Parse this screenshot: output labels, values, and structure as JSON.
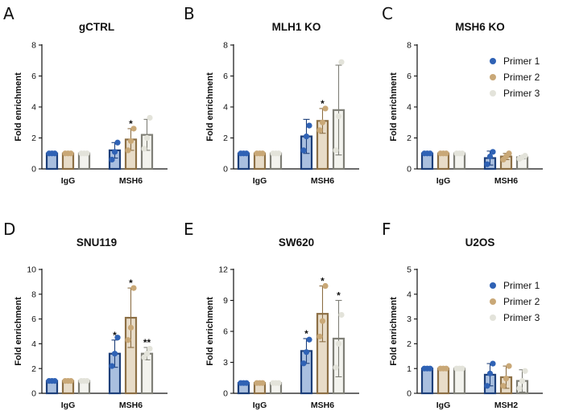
{
  "colors": {
    "primer1_edge": "#1d3f7a",
    "primer1_fill": "#a9bfdf",
    "primer1_dot": "#2f62b5",
    "primer2_edge": "#8c6f45",
    "primer2_fill": "#e8dcc8",
    "primer2_dot": "#c9a877",
    "primer3_edge": "#7f7f77",
    "primer3_fill": "#f3f3ee",
    "primer3_dot": "#e3e3da"
  },
  "chart_data": [
    {
      "type": "bar",
      "panel": "A",
      "title": "gCTRL",
      "ylabel": "Fold enrichment",
      "ylim": [
        0,
        8
      ],
      "yticks": [
        0,
        2,
        4,
        6,
        8
      ],
      "categories": [
        "IgG",
        "MSH6"
      ],
      "series": [
        {
          "name": "Primer 1",
          "values": [
            1.0,
            1.2
          ],
          "errors": [
            0.0,
            0.5
          ],
          "points": [
            [
              1,
              1,
              1
            ],
            [
              0.6,
              1.1,
              1.7
            ]
          ],
          "sig": [
            "",
            ""
          ]
        },
        {
          "name": "Primer 2",
          "values": [
            1.0,
            1.9
          ],
          "errors": [
            0.0,
            0.7
          ],
          "points": [
            [
              1,
              1,
              1
            ],
            [
              1.2,
              1.8,
              2.6
            ]
          ],
          "sig": [
            "",
            "*"
          ]
        },
        {
          "name": "Primer 3",
          "values": [
            1.0,
            2.2
          ],
          "errors": [
            0.0,
            1.0
          ],
          "points": [
            [
              1,
              1,
              1
            ],
            [
              1.3,
              2.0,
              3.3
            ]
          ],
          "sig": [
            "",
            ""
          ]
        }
      ]
    },
    {
      "type": "bar",
      "panel": "B",
      "title": "MLH1 KO",
      "ylabel": "Fold enrichment",
      "ylim": [
        0,
        8
      ],
      "yticks": [
        0,
        2,
        4,
        6,
        8
      ],
      "categories": [
        "IgG",
        "MSH6"
      ],
      "series": [
        {
          "name": "Primer 1",
          "values": [
            1.0,
            2.1
          ],
          "errors": [
            0.0,
            1.1
          ],
          "points": [
            [
              1,
              1,
              1
            ],
            [
              1.2,
              2.1,
              2.8
            ]
          ],
          "sig": [
            "",
            ""
          ]
        },
        {
          "name": "Primer 2",
          "values": [
            1.0,
            3.1
          ],
          "errors": [
            0.0,
            0.8
          ],
          "points": [
            [
              1,
              1,
              1
            ],
            [
              2.5,
              3.0,
              3.9
            ]
          ],
          "sig": [
            "",
            "*"
          ]
        },
        {
          "name": "Primer 3",
          "values": [
            1.0,
            3.8
          ],
          "errors": [
            0.0,
            2.9
          ],
          "points": [
            [
              1,
              1,
              1
            ],
            [
              1.2,
              3.4,
              6.9
            ]
          ],
          "sig": [
            "",
            ""
          ]
        }
      ]
    },
    {
      "type": "bar",
      "panel": "C",
      "title": "MSH6 KO",
      "ylabel": "Fold enrichment",
      "ylim": [
        0,
        8
      ],
      "yticks": [
        0,
        2,
        4,
        6,
        8
      ],
      "categories": [
        "IgG",
        "MSH6"
      ],
      "series": [
        {
          "name": "Primer 1",
          "values": [
            1.0,
            0.7
          ],
          "errors": [
            0.0,
            0.45
          ],
          "points": [
            [
              1,
              1,
              1
            ],
            [
              0.3,
              0.8,
              1.1
            ]
          ],
          "sig": [
            "",
            ""
          ]
        },
        {
          "name": "Primer 2",
          "values": [
            1.0,
            0.8
          ],
          "errors": [
            0.0,
            0.2
          ],
          "points": [
            [
              1,
              1,
              1
            ],
            [
              0.6,
              0.8,
              1.0
            ]
          ],
          "sig": [
            "",
            ""
          ]
        },
        {
          "name": "Primer 3",
          "values": [
            1.0,
            0.75
          ],
          "errors": [
            0.0,
            0.1
          ],
          "points": [
            [
              1,
              1,
              1
            ],
            [
              0.65,
              0.75,
              0.85
            ]
          ],
          "sig": [
            "",
            ""
          ]
        }
      ],
      "legend": [
        "Primer 1",
        "Primer 2",
        "Primer 3"
      ]
    },
    {
      "type": "bar",
      "panel": "D",
      "title": "SNU119",
      "ylabel": "Fold enrichment",
      "ylim": [
        0,
        10
      ],
      "yticks": [
        0,
        2,
        4,
        6,
        8,
        10
      ],
      "categories": [
        "IgG",
        "MSH6"
      ],
      "series": [
        {
          "name": "Primer 1",
          "values": [
            1.0,
            3.2
          ],
          "errors": [
            0.0,
            1.1
          ],
          "points": [
            [
              1,
              1,
              1
            ],
            [
              2.2,
              3.2,
              4.5
            ]
          ],
          "sig": [
            "",
            "*"
          ]
        },
        {
          "name": "Primer 2",
          "values": [
            1.0,
            6.1
          ],
          "errors": [
            0.0,
            2.4
          ],
          "points": [
            [
              1,
              1,
              1
            ],
            [
              4.3,
              5.3,
              8.5
            ]
          ],
          "sig": [
            "",
            "*"
          ]
        },
        {
          "name": "Primer 3",
          "values": [
            1.0,
            3.2
          ],
          "errors": [
            0.0,
            0.5
          ],
          "points": [
            [
              1,
              1,
              1
            ],
            [
              2.9,
              3.2,
              3.6
            ]
          ],
          "sig": [
            "",
            "**"
          ]
        }
      ]
    },
    {
      "type": "bar",
      "panel": "E",
      "title": "SW620",
      "ylabel": "Fold enrichment",
      "ylim": [
        0,
        12
      ],
      "yticks": [
        0,
        3,
        6,
        9,
        12
      ],
      "categories": [
        "IgG",
        "MSH6"
      ],
      "series": [
        {
          "name": "Primer 1",
          "values": [
            1.0,
            4.1
          ],
          "errors": [
            0.0,
            1.2
          ],
          "points": [
            [
              1,
              1,
              1
            ],
            [
              2.9,
              4.0,
              5.2
            ]
          ],
          "sig": [
            "",
            "*"
          ]
        },
        {
          "name": "Primer 2",
          "values": [
            1.0,
            7.7
          ],
          "errors": [
            0.0,
            2.7
          ],
          "points": [
            [
              1,
              1,
              1
            ],
            [
              5.5,
              7.0,
              10.4
            ]
          ],
          "sig": [
            "",
            "*"
          ]
        },
        {
          "name": "Primer 3",
          "values": [
            1.0,
            5.3
          ],
          "errors": [
            0.0,
            3.7
          ],
          "points": [
            [
              1,
              1,
              1
            ],
            [
              2.5,
              4.8,
              7.6
            ]
          ],
          "sig": [
            "",
            "*"
          ]
        }
      ]
    },
    {
      "type": "bar",
      "panel": "F",
      "title": "U2OS",
      "ylabel": "Fold enrichment",
      "ylim": [
        0,
        5
      ],
      "yticks": [
        0,
        1,
        2,
        3,
        4,
        5
      ],
      "categories": [
        "IgG",
        "MSH2"
      ],
      "series": [
        {
          "name": "Primer 1",
          "values": [
            1.0,
            0.75
          ],
          "errors": [
            0.0,
            0.45
          ],
          "points": [
            [
              1,
              1,
              1
            ],
            [
              0.3,
              0.8,
              1.2
            ]
          ],
          "sig": [
            "",
            ""
          ]
        },
        {
          "name": "Primer 2",
          "values": [
            1.0,
            0.65
          ],
          "errors": [
            0.0,
            0.45
          ],
          "points": [
            [
              1,
              1,
              1
            ],
            [
              0.3,
              0.6,
              1.1
            ]
          ],
          "sig": [
            "",
            ""
          ]
        },
        {
          "name": "Primer 3",
          "values": [
            1.0,
            0.5
          ],
          "errors": [
            0.0,
            0.45
          ],
          "points": [
            [
              1,
              1,
              1
            ],
            [
              0.2,
              0.5,
              0.9
            ]
          ],
          "sig": [
            "",
            ""
          ]
        }
      ],
      "legend": [
        "Primer 1",
        "Primer 2",
        "Primer 3"
      ]
    }
  ]
}
